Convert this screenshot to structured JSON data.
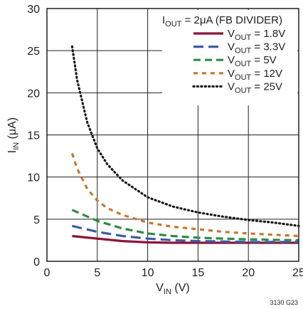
{
  "chart_data": {
    "type": "line",
    "title": "",
    "legend_title": {
      "main": "I",
      "sub": "OUT",
      "rest": " = 2μA (FB DIVIDER)"
    },
    "xlabel": {
      "main": "V",
      "sub": "IN",
      "rest": " (V)"
    },
    "ylabel": {
      "main": "I",
      "sub": "IN",
      "rest": " (μA)"
    },
    "xlim": [
      0,
      25
    ],
    "ylim": [
      0,
      30
    ],
    "x_ticks": [
      "0",
      "5",
      "10",
      "15",
      "20",
      "25"
    ],
    "y_ticks": [
      "0",
      "5",
      "10",
      "15",
      "20",
      "25",
      "30"
    ],
    "grid": true,
    "legend_position": "top-right",
    "footnote": "3130 G23",
    "series": [
      {
        "name": "VOUT = 1.8V",
        "label": {
          "main": "V",
          "sub": "OUT",
          "rest": " = 1.8V"
        },
        "color": "#8b1538",
        "dash": "solid",
        "x": [
          2.5,
          5,
          7.5,
          10,
          12.5,
          15,
          17.5,
          20,
          22.5,
          25
        ],
        "y": [
          3.0,
          2.7,
          2.4,
          2.25,
          2.2,
          2.2,
          2.2,
          2.2,
          2.2,
          2.2
        ]
      },
      {
        "name": "VOUT = 3.3V",
        "label": {
          "main": "V",
          "sub": "OUT",
          "rest": " = 3.3V"
        },
        "color": "#3b5ba9",
        "dash": "long",
        "x": [
          2.5,
          5,
          7.5,
          10,
          12.5,
          15,
          17.5,
          20,
          22.5,
          25
        ],
        "y": [
          4.2,
          3.5,
          3.0,
          2.7,
          2.5,
          2.4,
          2.35,
          2.3,
          2.3,
          2.3
        ]
      },
      {
        "name": "VOUT = 5V",
        "label": {
          "main": "V",
          "sub": "OUT",
          "rest": " = 5V"
        },
        "color": "#2e8b45",
        "dash": "medium",
        "x": [
          2.5,
          5,
          7.5,
          10,
          12.5,
          15,
          17.5,
          20,
          22.5,
          25
        ],
        "y": [
          6.1,
          4.8,
          3.9,
          3.3,
          3.0,
          2.8,
          2.7,
          2.6,
          2.55,
          2.5
        ]
      },
      {
        "name": "VOUT = 12V",
        "label": {
          "main": "V",
          "sub": "OUT",
          "rest": " = 12V"
        },
        "color": "#c8762d",
        "dash": "short",
        "x": [
          2.5,
          3,
          4,
          5,
          6,
          7.5,
          10,
          12.5,
          15,
          17.5,
          20,
          22.5,
          25
        ],
        "y": [
          12.8,
          11.0,
          8.6,
          7.2,
          6.3,
          5.5,
          4.6,
          4.1,
          3.8,
          3.5,
          3.3,
          3.15,
          3.0
        ]
      },
      {
        "name": "VOUT = 25V",
        "label": {
          "main": "V",
          "sub": "OUT",
          "rest": " = 25V"
        },
        "color": "#1a1a1a",
        "dash": "dotted",
        "x": [
          2.5,
          3,
          4,
          5,
          6,
          7.5,
          10,
          12.5,
          15,
          17.5,
          20,
          22.5,
          25
        ],
        "y": [
          25.5,
          21.5,
          16.5,
          13.4,
          11.5,
          9.6,
          7.6,
          6.5,
          5.8,
          5.3,
          4.9,
          4.6,
          4.2
        ]
      }
    ]
  }
}
